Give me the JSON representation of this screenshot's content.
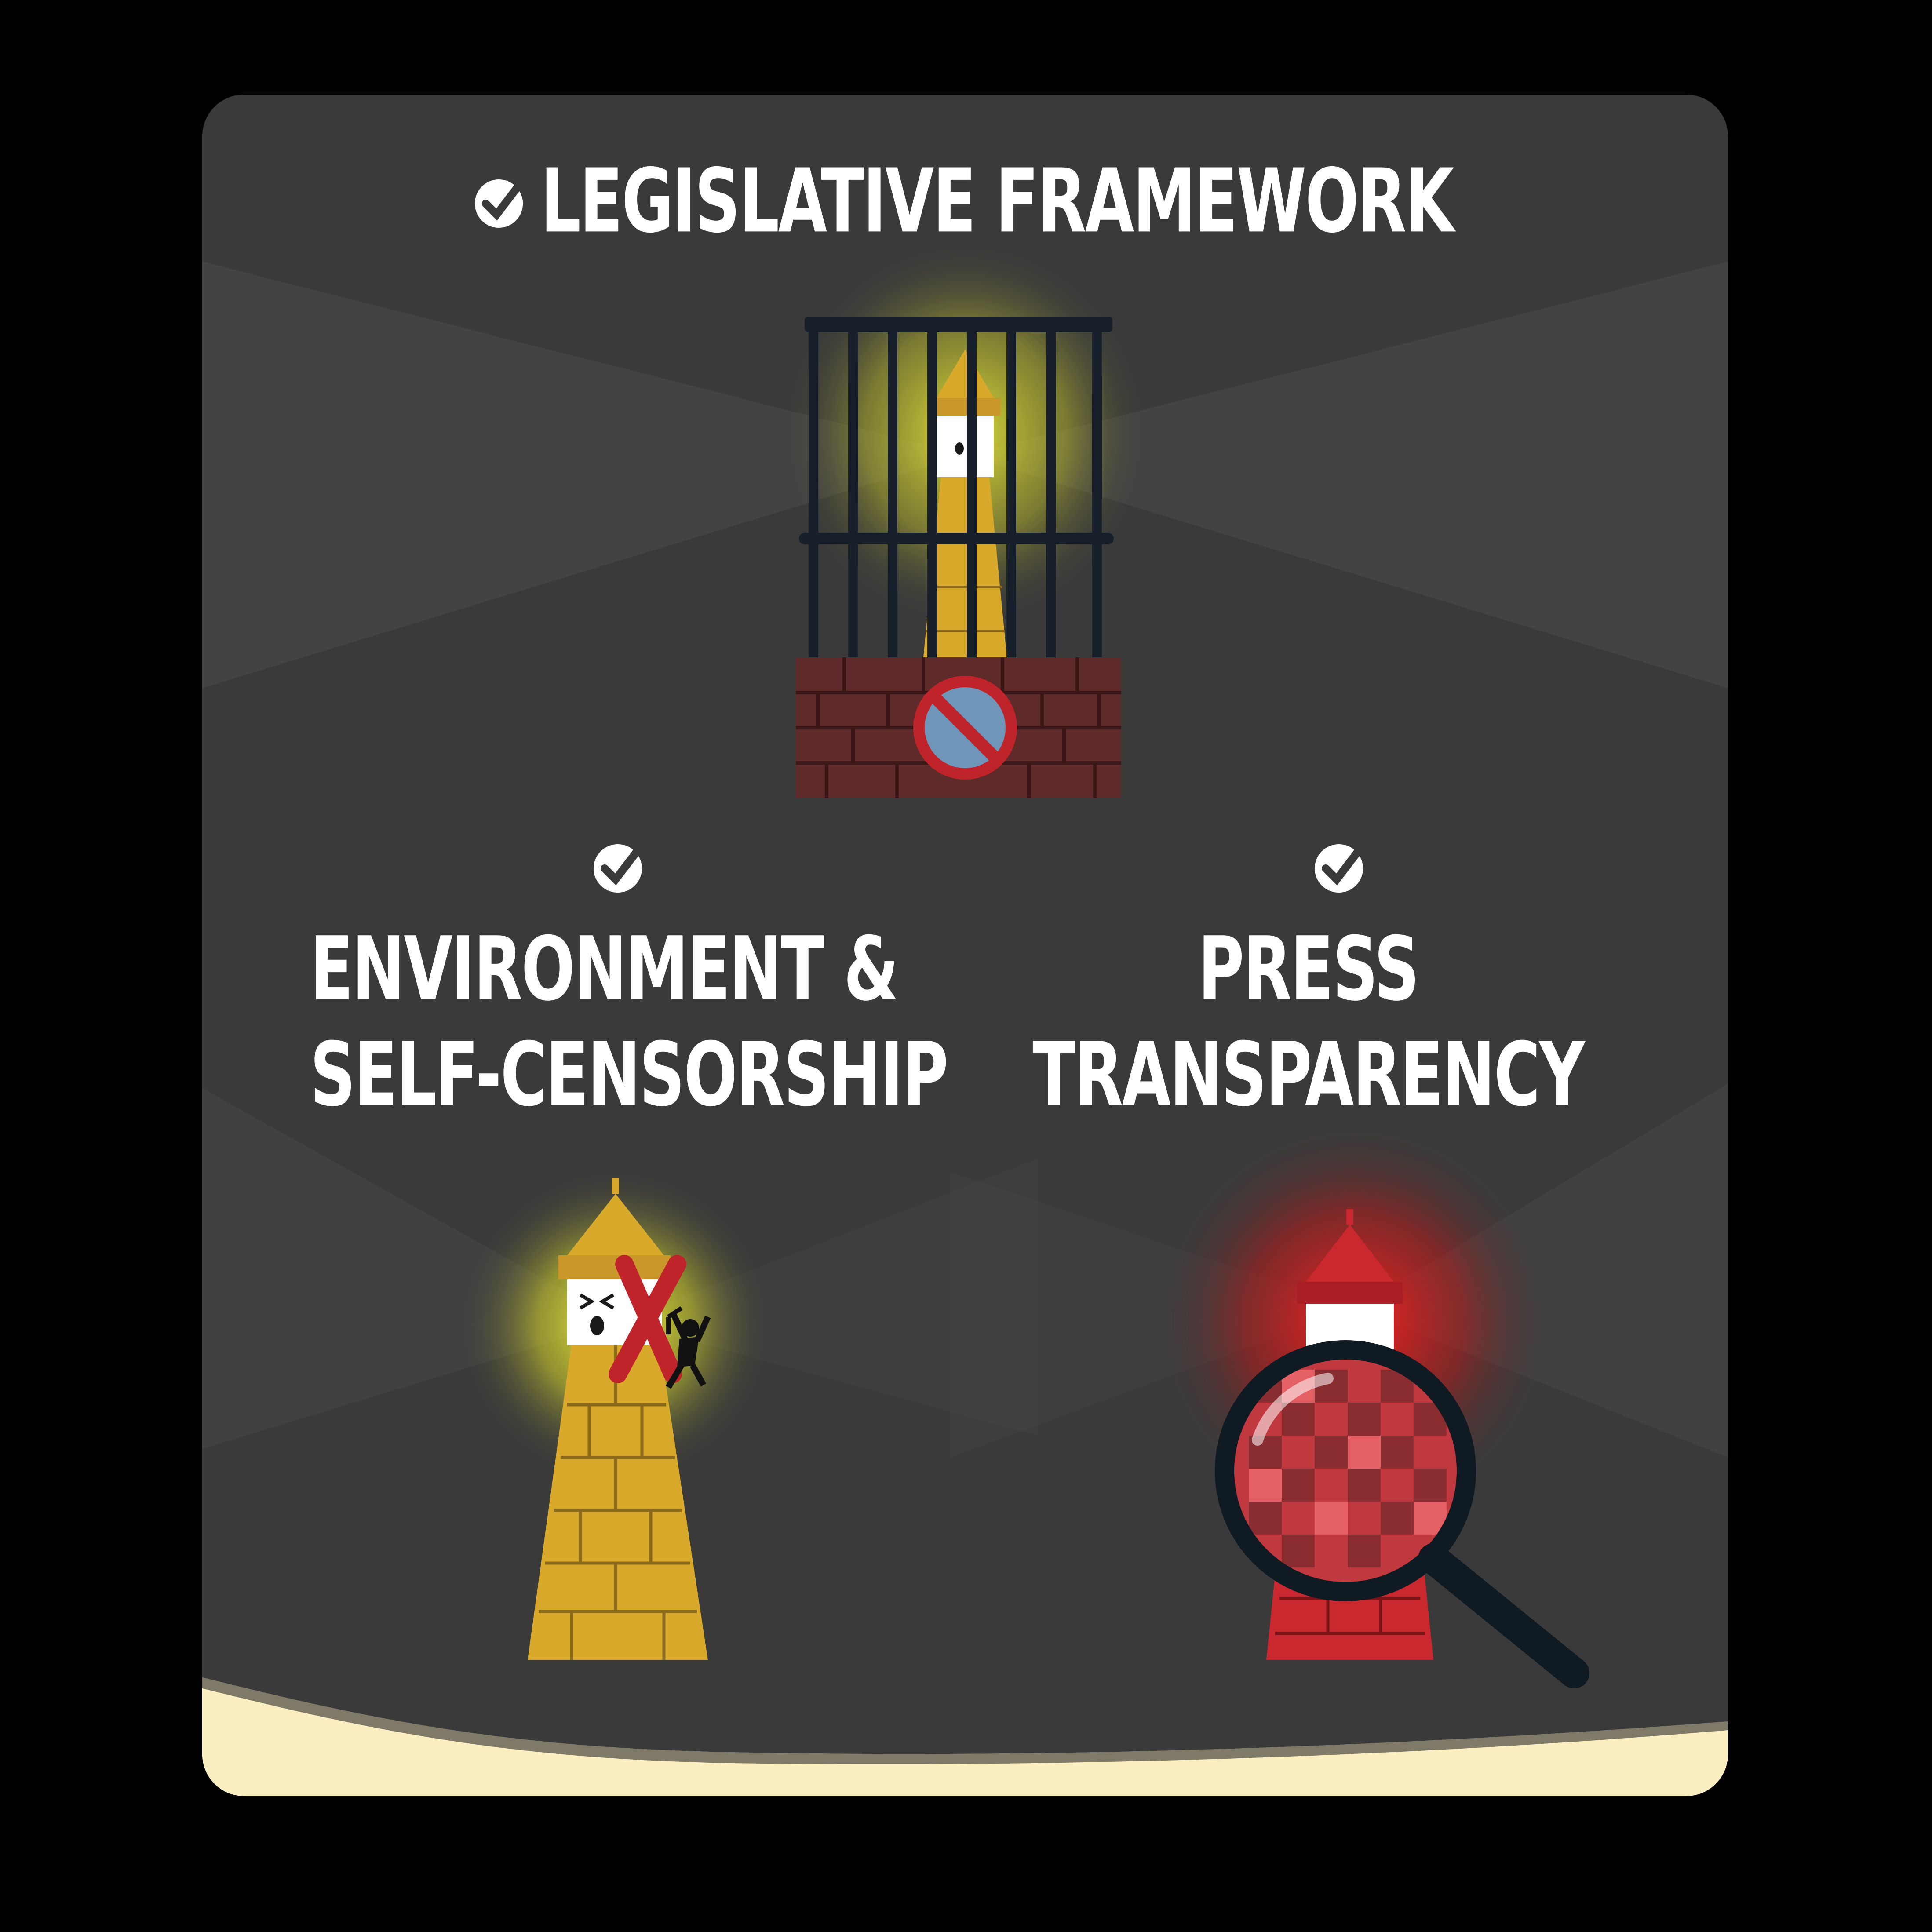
{
  "headings": {
    "legislative": "LEGISLATIVE FRAMEWORK",
    "environment_line1": "ENVIRONMENT &",
    "environment_line2": "SELF-CENSORSHIP",
    "press_line1": "PRESS",
    "press_line2": "TRANSPARENCY"
  },
  "icons": {
    "check": "check-badge-icon",
    "cage": "cage-icon",
    "no_sign": "prohibition-sign-icon",
    "lighthouse": "lighthouse-icon",
    "cross": "red-x-icon",
    "climber": "climbing-figure-icon",
    "magnifier": "magnifying-glass-icon"
  },
  "colors": {
    "background": "#000000",
    "panel": "#3a3a3a",
    "floor": "#fbefc1",
    "text": "#ffffff",
    "yellow_glow": "#e8e83a",
    "red_glow": "#ff1a1a",
    "gold_tower": "#d9a92b",
    "red_tower": "#c8282e",
    "brick": "#5e2a2a",
    "no_sign_fill": "#6f96b8",
    "no_sign_ring": "#c0242b"
  }
}
